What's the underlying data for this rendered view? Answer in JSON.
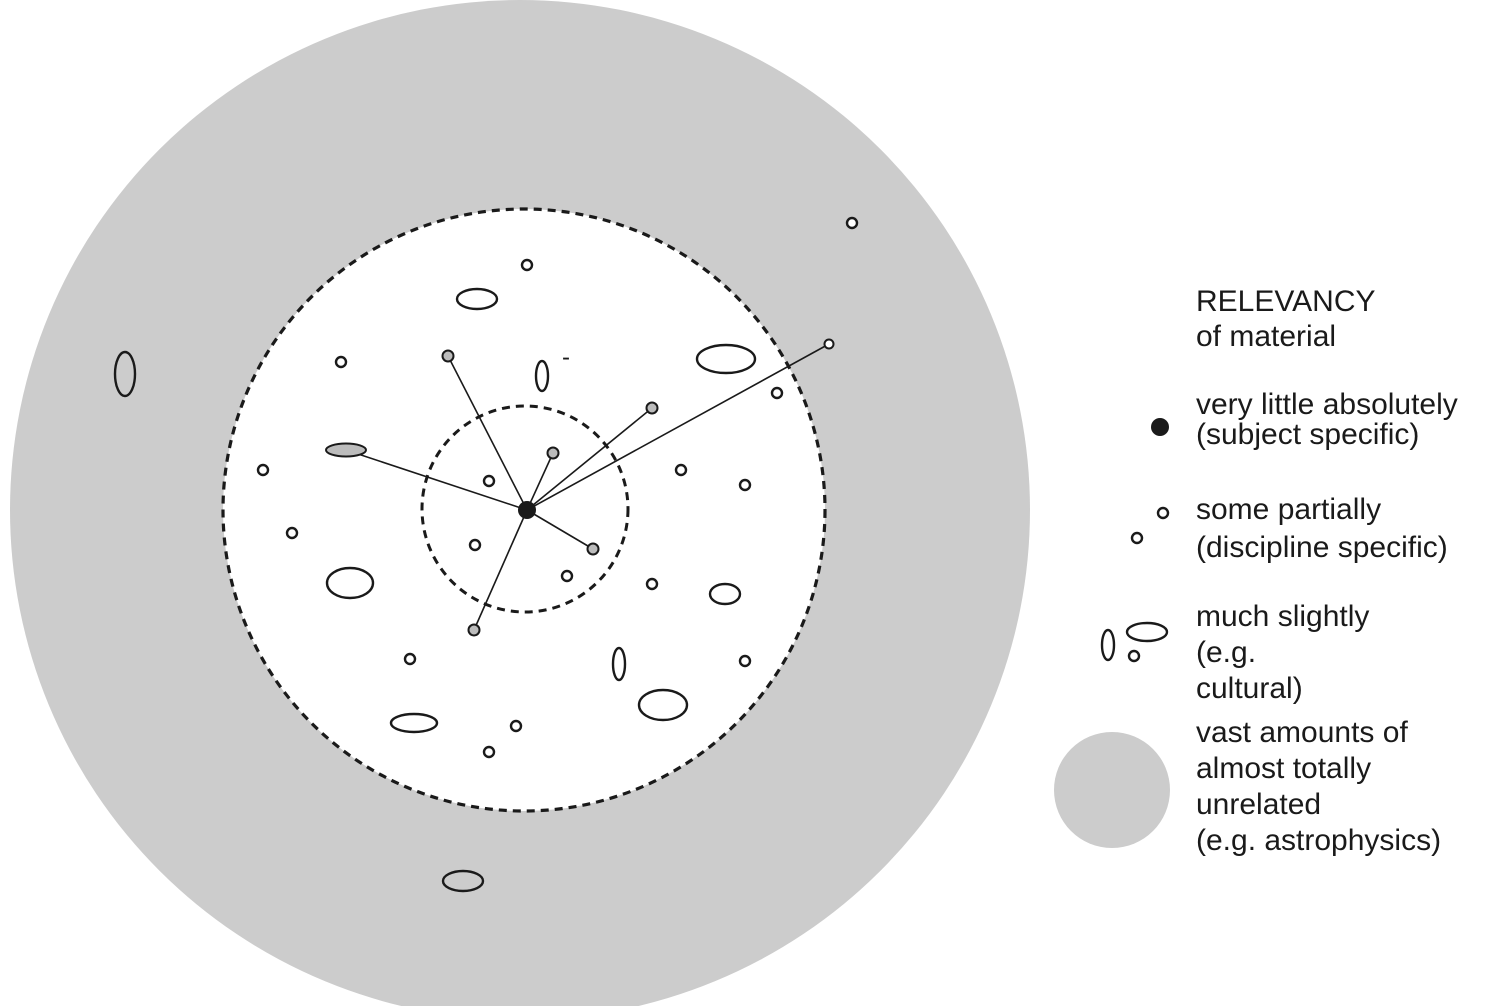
{
  "colors": {
    "outer_region": "#cccccc",
    "inner_region": "#ffffff",
    "stroke": "#1a1a1a",
    "linked_item_fill": "#bcbcbc",
    "subject_dot": "#1a1a1a"
  },
  "annotation": {
    "mark": "-"
  },
  "legend": {
    "title_line1": "RELEVANCY",
    "title_line2": "of material",
    "entries": [
      {
        "icon": "filled-dot-icon",
        "lines": [
          "very little absolutely",
          "(subject specific)"
        ]
      },
      {
        "icon": "small-circles-icon",
        "lines": [
          "some partially",
          "(discipline specific)"
        ]
      },
      {
        "icon": "ellipses-icon",
        "lines": [
          "much slightly",
          "(e.g.",
          "cultural)"
        ]
      },
      {
        "icon": "grey-disc-icon",
        "lines": [
          "vast amounts of",
          "almost totally",
          "unrelated",
          "(e.g. astrophysics)"
        ]
      }
    ]
  }
}
